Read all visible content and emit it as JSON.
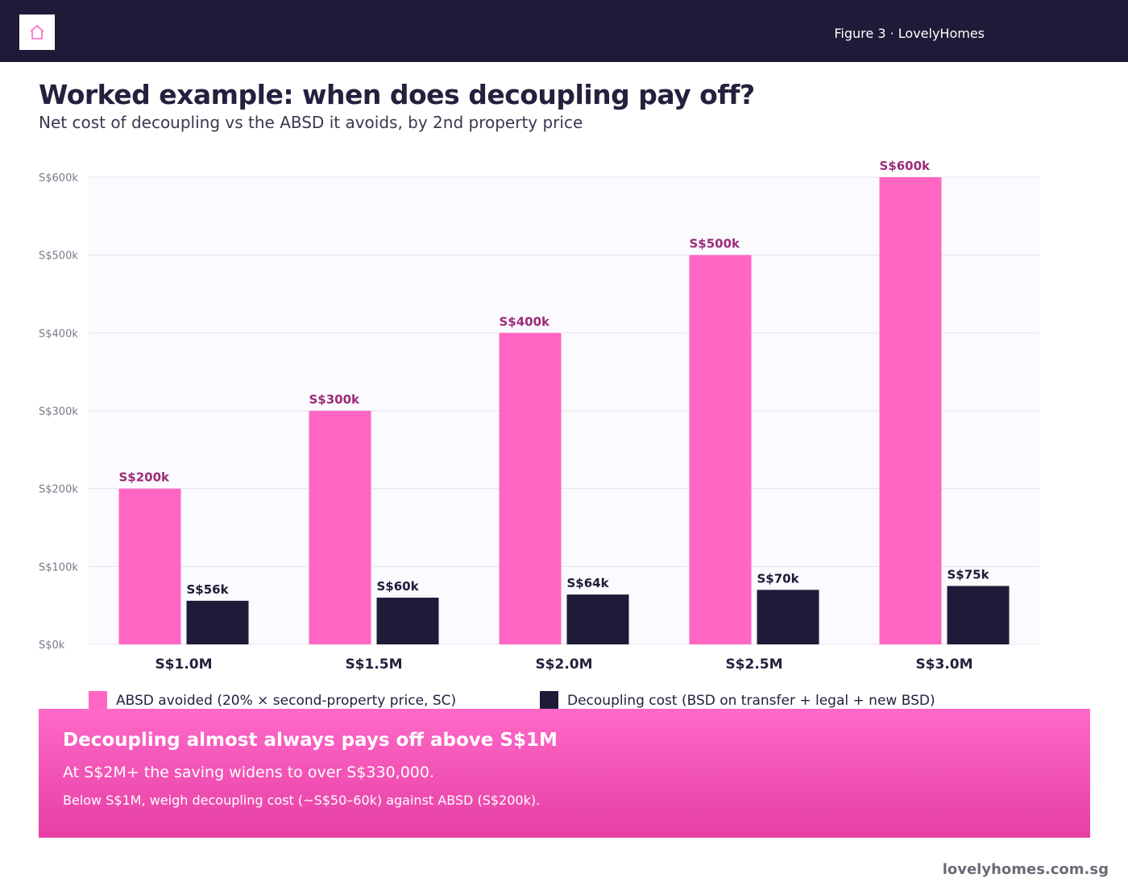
{
  "header": {
    "logo_icon": "house-icon",
    "figure_label": "Figure 3 · LovelyHomes"
  },
  "title": "Worked example: when does decoupling pay off?",
  "subtitle": "Net cost of decoupling vs the ABSD it avoids, by 2nd property price",
  "colors": {
    "absd": "#ff66c4",
    "decoupling": "#1e1b38",
    "absd_label": "#9b2b78",
    "plot_bg": "#fbfafe"
  },
  "chart_data": {
    "type": "bar",
    "categories": [
      "S$1.0M",
      "S$1.5M",
      "S$2.0M",
      "S$2.5M",
      "S$3.0M"
    ],
    "series": [
      {
        "name": "ABSD avoided (20% × second-property price, SC)",
        "values": [
          200000,
          300000,
          400000,
          500000,
          600000
        ],
        "labels": [
          "S$200k",
          "S$300k",
          "S$400k",
          "S$500k",
          "S$600k"
        ]
      },
      {
        "name": "Decoupling cost (BSD on transfer + legal + new BSD)",
        "values": [
          56000,
          60000,
          64000,
          70000,
          75000
        ],
        "labels": [
          "S$56k",
          "S$60k",
          "S$64k",
          "S$70k",
          "S$75k"
        ]
      }
    ],
    "ylim": [
      0,
      600000
    ],
    "yticks": [
      0,
      100000,
      200000,
      300000,
      400000,
      500000,
      600000
    ],
    "ytick_labels": [
      "S$0k",
      "S$100k",
      "S$200k",
      "S$300k",
      "S$400k",
      "S$500k",
      "S$600k"
    ],
    "grid": true,
    "legend_position": "bottom"
  },
  "callout": {
    "headline": "Decoupling almost always pays off above S$1M",
    "line1": "At S$2M+ the saving widens to over S$330,000.",
    "line2": "Below S$1M, weigh decoupling cost (~S$50–60k) against ABSD (S$200k)."
  },
  "footer": {
    "url": "lovelyhomes.com.sg"
  }
}
